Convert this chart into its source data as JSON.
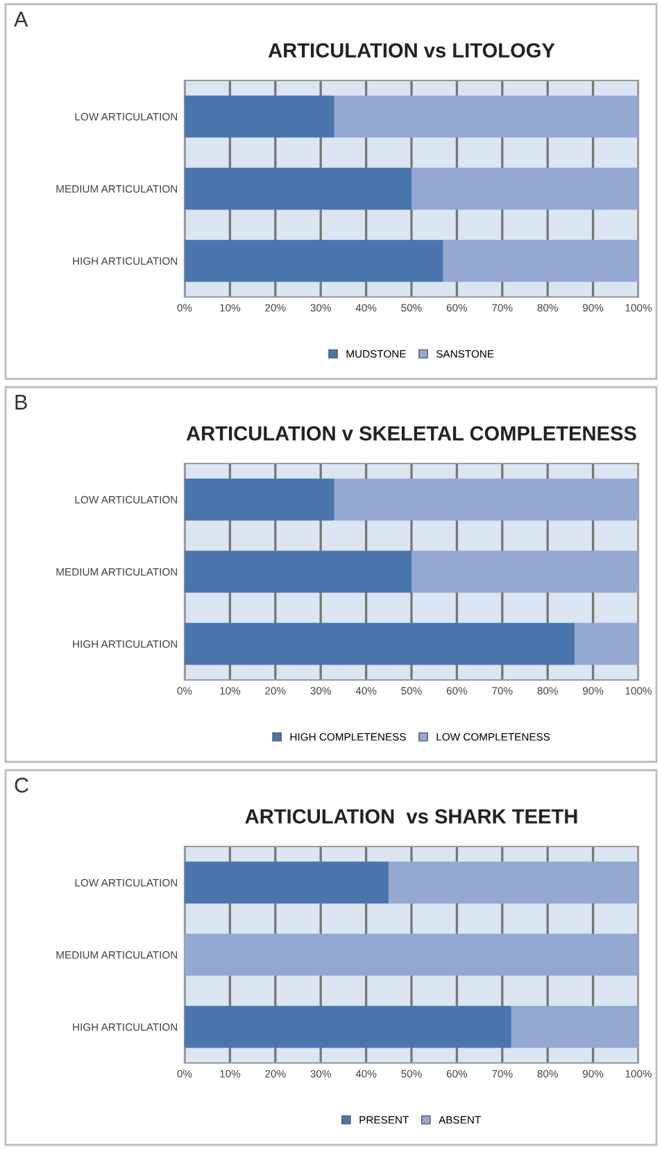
{
  "chart_data": [
    {
      "type": "bar",
      "orientation": "horizontal",
      "stacked": true,
      "title": "ARTICULATION vs LITOLOGY",
      "annotations": [
        "A"
      ],
      "categories": [
        "LOW ARTICULATION",
        "MEDIUM ARTICULATION",
        "HIGH ARTICULATION"
      ],
      "series": [
        {
          "name": "MUDSTONE",
          "color": "#4a76ad",
          "values": [
            33,
            50,
            57
          ]
        },
        {
          "name": "SANSTONE",
          "color": "#93a9d2",
          "values": [
            67,
            50,
            43
          ]
        }
      ],
      "xlim": [
        0,
        100
      ],
      "xticks": [
        {
          "value": 0,
          "label": "0%"
        },
        {
          "value": 10,
          "label": "10%"
        },
        {
          "value": 20,
          "label": "20%"
        },
        {
          "value": 30,
          "label": "30%"
        },
        {
          "value": 40,
          "label": "40%"
        },
        {
          "value": 50,
          "label": "50%"
        },
        {
          "value": 60,
          "label": "60%"
        },
        {
          "value": 70,
          "label": "70%"
        },
        {
          "value": 80,
          "label": "80%"
        },
        {
          "value": 90,
          "label": "90%"
        },
        {
          "value": 100,
          "label": "100%"
        }
      ],
      "grid": "x",
      "legend": "bottom"
    },
    {
      "type": "bar",
      "orientation": "horizontal",
      "stacked": true,
      "title": "ARTICULATION v SKELETAL COMPLETENESS",
      "annotations": [
        "B"
      ],
      "categories": [
        "LOW ARTICULATION",
        "MEDIUM ARTICULATION",
        "HIGH ARTICULATION"
      ],
      "series": [
        {
          "name": "HIGH COMPLETENESS",
          "color": "#4a76ad",
          "values": [
            33,
            50,
            86
          ]
        },
        {
          "name": "LOW COMPLETENESS",
          "color": "#93a9d2",
          "values": [
            67,
            50,
            14
          ]
        }
      ],
      "xlim": [
        0,
        100
      ],
      "xticks": [
        {
          "value": 0,
          "label": "0%"
        },
        {
          "value": 10,
          "label": "10%"
        },
        {
          "value": 20,
          "label": "20%"
        },
        {
          "value": 30,
          "label": "30%"
        },
        {
          "value": 40,
          "label": "40%"
        },
        {
          "value": 50,
          "label": "50%"
        },
        {
          "value": 60,
          "label": "60%"
        },
        {
          "value": 70,
          "label": "70%"
        },
        {
          "value": 80,
          "label": "80%"
        },
        {
          "value": 90,
          "label": "90%"
        },
        {
          "value": 100,
          "label": "100%"
        }
      ],
      "grid": "x",
      "legend": "bottom"
    },
    {
      "type": "bar",
      "orientation": "horizontal",
      "stacked": true,
      "title": "ARTICULATION  vs SHARK TEETH",
      "annotations": [
        "C"
      ],
      "categories": [
        "LOW ARTICULATION",
        "MEDIUM ARTICULATION",
        "HIGH ARTICULATION"
      ],
      "series": [
        {
          "name": "PRESENT",
          "color": "#4a76ad",
          "values": [
            45,
            0,
            72
          ]
        },
        {
          "name": "ABSENT",
          "color": "#93a9d2",
          "values": [
            55,
            100,
            28
          ]
        }
      ],
      "xlim": [
        0,
        100
      ],
      "xticks": [
        {
          "value": 0,
          "label": "0%"
        },
        {
          "value": 10,
          "label": "10%"
        },
        {
          "value": 20,
          "label": "20%"
        },
        {
          "value": 30,
          "label": "30%"
        },
        {
          "value": 40,
          "label": "40%"
        },
        {
          "value": 50,
          "label": "50%"
        },
        {
          "value": 60,
          "label": "60%"
        },
        {
          "value": 70,
          "label": "70%"
        },
        {
          "value": 80,
          "label": "80%"
        },
        {
          "value": 90,
          "label": "90%"
        },
        {
          "value": 100,
          "label": "100%"
        }
      ],
      "grid": "x",
      "legend": "bottom"
    }
  ]
}
